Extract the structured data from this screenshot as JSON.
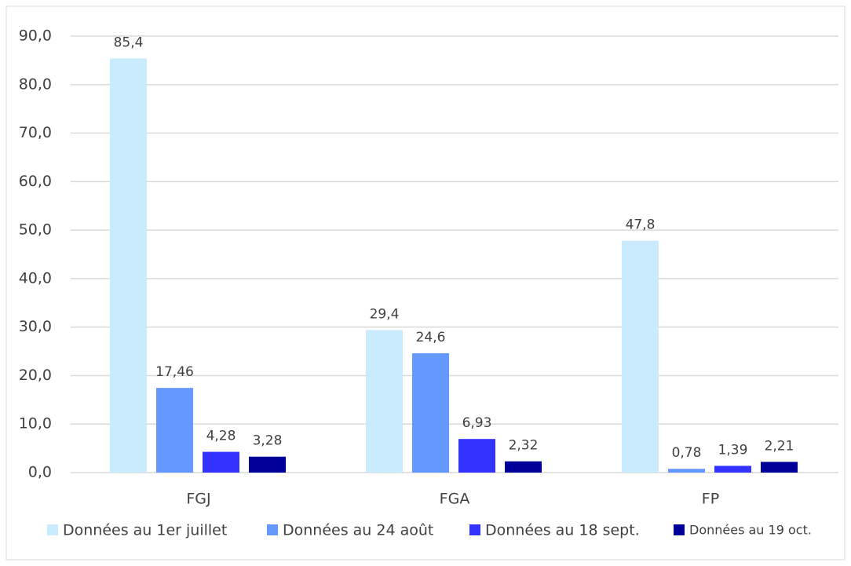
{
  "chart_data": {
    "type": "bar",
    "categories": [
      "FGJ",
      "FGA",
      "FP"
    ],
    "series": [
      {
        "name": "Données au 1er juillet",
        "color": "#caebfd",
        "values": [
          85.4,
          29.4,
          47.8
        ],
        "value_labels": [
          "85,4",
          "29,4",
          "47,8"
        ]
      },
      {
        "name": "Données au 24 août",
        "color": "#6699ff",
        "values": [
          17.46,
          24.6,
          0.78
        ],
        "value_labels": [
          "17,46",
          "24,6",
          "0,78"
        ]
      },
      {
        "name": "Données au 18 sept.",
        "color": "#3333ff",
        "values": [
          4.28,
          6.93,
          1.39
        ],
        "value_labels": [
          "4,28",
          "6,93",
          "1,39"
        ]
      },
      {
        "name": "Données au 19 oct.",
        "color": "#000099",
        "values": [
          3.28,
          2.32,
          2.21
        ],
        "value_labels": [
          "3,28",
          "2,32",
          "2,21"
        ]
      }
    ],
    "ylim": [
      0,
      90
    ],
    "yticks": [
      {
        "value": 0,
        "label": "0,0"
      },
      {
        "value": 10,
        "label": "10,0"
      },
      {
        "value": 20,
        "label": "20,0"
      },
      {
        "value": 30,
        "label": "30,0"
      },
      {
        "value": 40,
        "label": "40,0"
      },
      {
        "value": 50,
        "label": "50,0"
      },
      {
        "value": 60,
        "label": "60,0"
      },
      {
        "value": 70,
        "label": "70,0"
      },
      {
        "value": 80,
        "label": "80,0"
      },
      {
        "value": 90,
        "label": "90,0"
      }
    ],
    "grid": true,
    "legend": "bottom"
  }
}
